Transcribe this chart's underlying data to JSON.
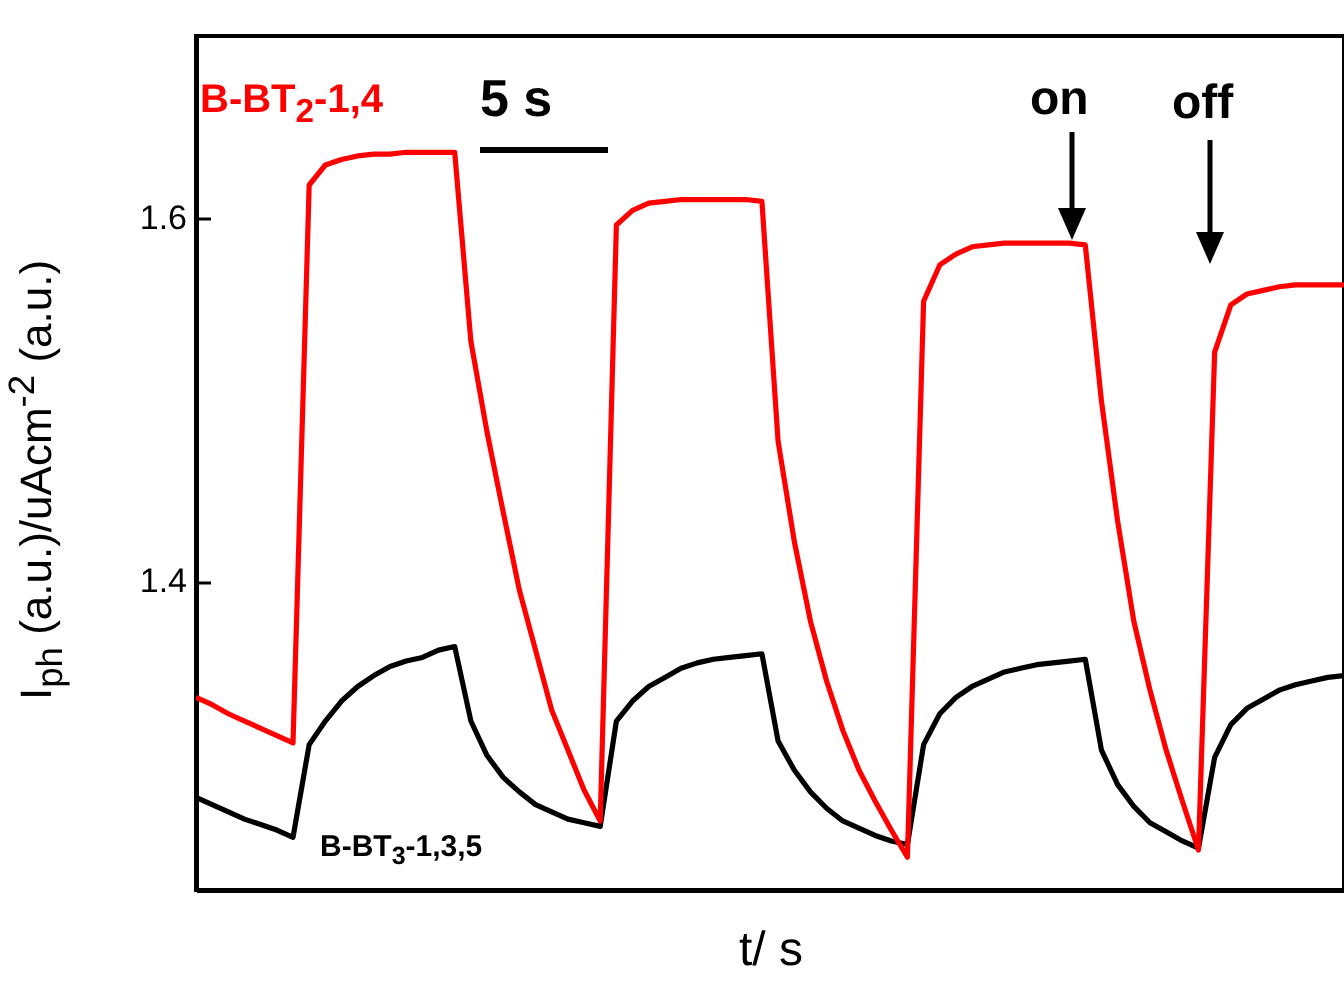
{
  "chart_data": {
    "type": "line",
    "xlabel": "t/ s",
    "ylabel": "I$_{ph}$ (a.u.)/uAcm$^{-2}$ (a.u.)",
    "ylim": [
      1.23,
      1.7
    ],
    "yticks": [
      1.4,
      1.6
    ],
    "tick_labels": "y",
    "categories": [
      null,
      null,
      null,
      null,
      null,
      null,
      null,
      null,
      null,
      null,
      null,
      null,
      null,
      null,
      null,
      null,
      null,
      null,
      null,
      null,
      null,
      null,
      null,
      null,
      null,
      null,
      null,
      null,
      null,
      null,
      null,
      null,
      null,
      null,
      null,
      null,
      null,
      null,
      null,
      null,
      null,
      null,
      null,
      null,
      null,
      null,
      null,
      null,
      null,
      null,
      null,
      null,
      null,
      null,
      null,
      null,
      null,
      null,
      null,
      null,
      null,
      null,
      null,
      null,
      null,
      null,
      null,
      null,
      null,
      null,
      null,
      null
    ],
    "series": [
      {
        "name": "B-BT$_{3}$-1,3,5",
        "color": "#000000",
        "values": [
          1.281,
          1.277,
          1.273,
          1.269,
          1.266,
          1.263,
          1.259,
          1.31,
          1.323,
          1.334,
          1.342,
          1.348,
          1.353,
          1.356,
          1.358,
          1.362,
          1.364,
          1.323,
          1.304,
          1.292,
          1.284,
          1.277,
          1.273,
          1.269,
          1.267,
          1.265,
          1.323,
          1.334,
          1.342,
          1.347,
          1.352,
          1.355,
          1.357,
          1.358,
          1.359,
          1.36,
          1.312,
          1.296,
          1.284,
          1.275,
          1.268,
          1.264,
          1.26,
          1.257,
          1.255,
          1.31,
          1.327,
          1.336,
          1.342,
          1.346,
          1.35,
          1.352,
          1.354,
          1.355,
          1.356,
          1.357,
          1.307,
          1.288,
          1.276,
          1.267,
          1.262,
          1.257,
          1.253,
          1.303,
          1.321,
          1.33,
          1.335,
          1.34,
          1.343,
          1.345,
          1.347,
          1.348
        ]
      },
      {
        "name": "B-BT$_{2}$-1,4",
        "color": "#ff0000",
        "values": [
          1.336,
          1.332,
          1.327,
          1.323,
          1.319,
          1.315,
          1.311,
          1.618,
          1.629,
          1.632,
          1.634,
          1.635,
          1.635,
          1.636,
          1.636,
          1.636,
          1.636,
          1.532,
          1.482,
          1.438,
          1.395,
          1.362,
          1.329,
          1.307,
          1.285,
          1.268,
          1.596,
          1.604,
          1.608,
          1.609,
          1.61,
          1.61,
          1.61,
          1.61,
          1.61,
          1.609,
          1.477,
          1.422,
          1.378,
          1.345,
          1.318,
          1.296,
          1.279,
          1.263,
          1.248,
          1.554,
          1.574,
          1.58,
          1.584,
          1.585,
          1.586,
          1.586,
          1.586,
          1.586,
          1.586,
          1.585,
          1.499,
          1.433,
          1.378,
          1.34,
          1.307,
          1.279,
          1.252,
          1.526,
          1.552,
          1.558,
          1.56,
          1.562,
          1.563,
          1.563,
          1.563,
          1.563
        ]
      }
    ],
    "annotations": [
      "5 s",
      "on",
      "off"
    ]
  }
}
